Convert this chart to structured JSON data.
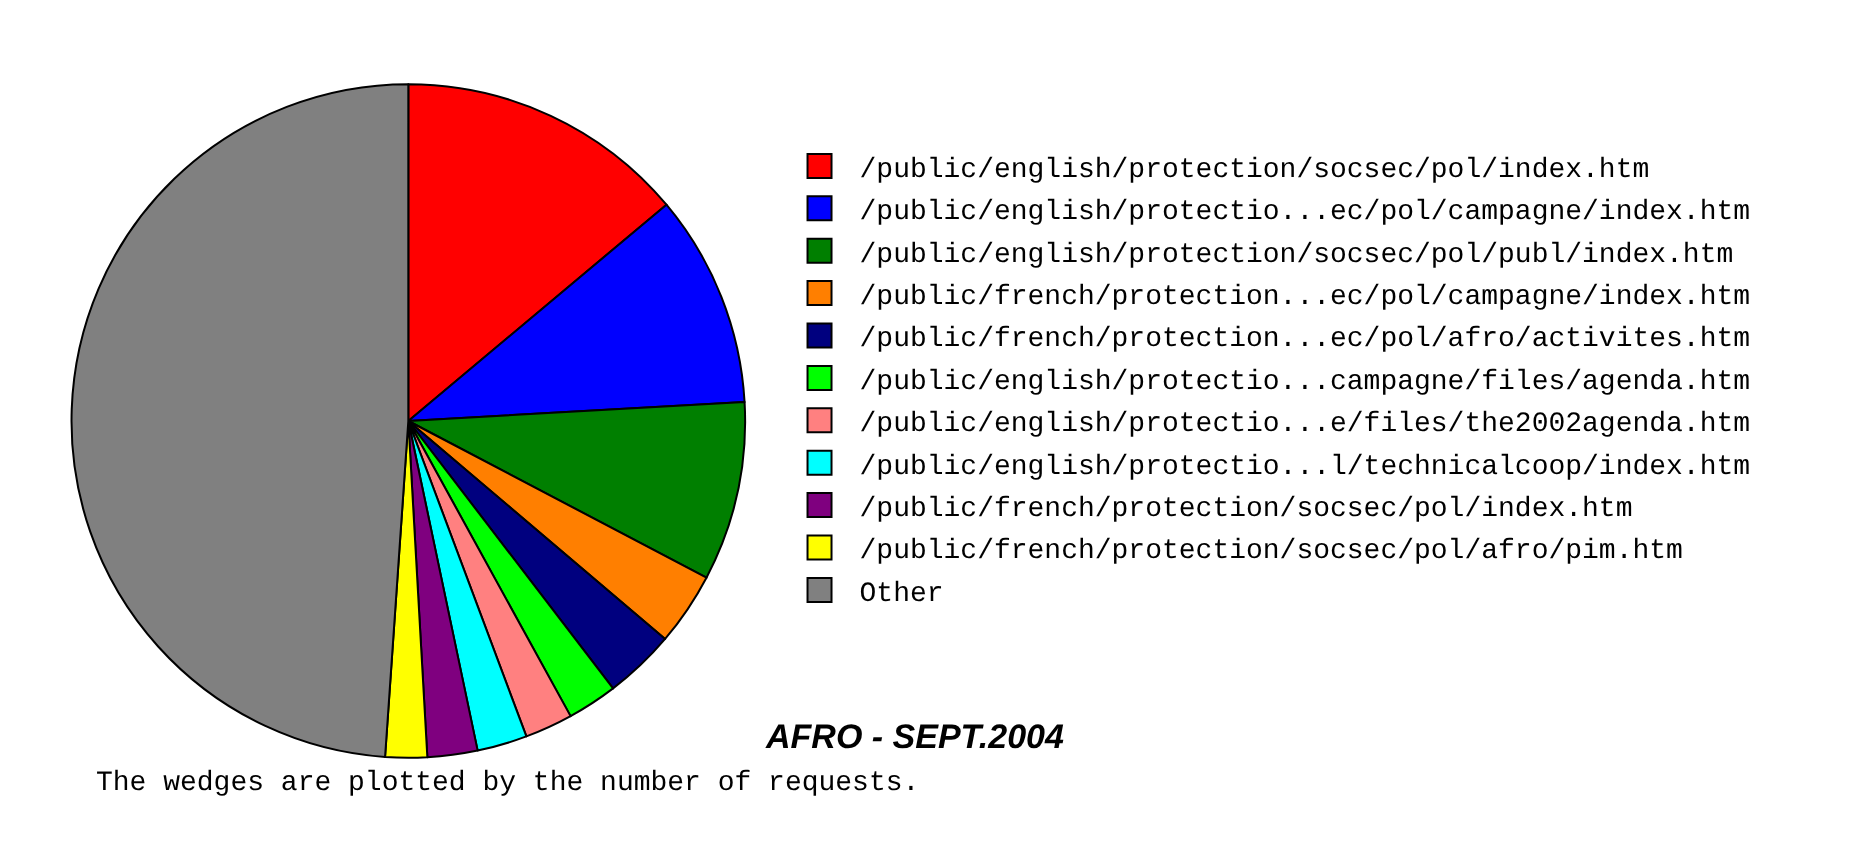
{
  "chart_data": {
    "type": "pie",
    "categories": [
      "/public/english/protection/socsec/pol/index.htm",
      "/public/english/protectio...ec/pol/campagne/index.htm",
      "/public/english/protection/socsec/pol/publ/index.htm",
      "/public/french/protection...ec/pol/campagne/index.htm",
      "/public/french/protection...ec/pol/afro/activites.htm",
      "/public/english/protectio...campagne/files/agenda.htm",
      "/public/english/protectio...e/files/the2002agenda.htm",
      "/public/english/protectio...l/technicalcoop/index.htm",
      "/public/french/protection/socsec/pol/index.htm",
      "/public/french/protection/socsec/pol/afro/pim.htm",
      "Other"
    ],
    "values": [
      13.9,
      10.2,
      8.6,
      3.5,
      3.4,
      2.4,
      2.3,
      2.4,
      2.4,
      2.0,
      48.9
    ],
    "colors": [
      "#ff0000",
      "#0000ff",
      "#007f00",
      "#ff7f00",
      "#00007f",
      "#00ff00",
      "#ff8080",
      "#00ffff",
      "#7f007f",
      "#ffff00",
      "#808080"
    ],
    "legend": "right",
    "annotations": [
      "AFRO - SEPT.2004",
      "The wedges are plotted by the number of requests."
    ]
  }
}
